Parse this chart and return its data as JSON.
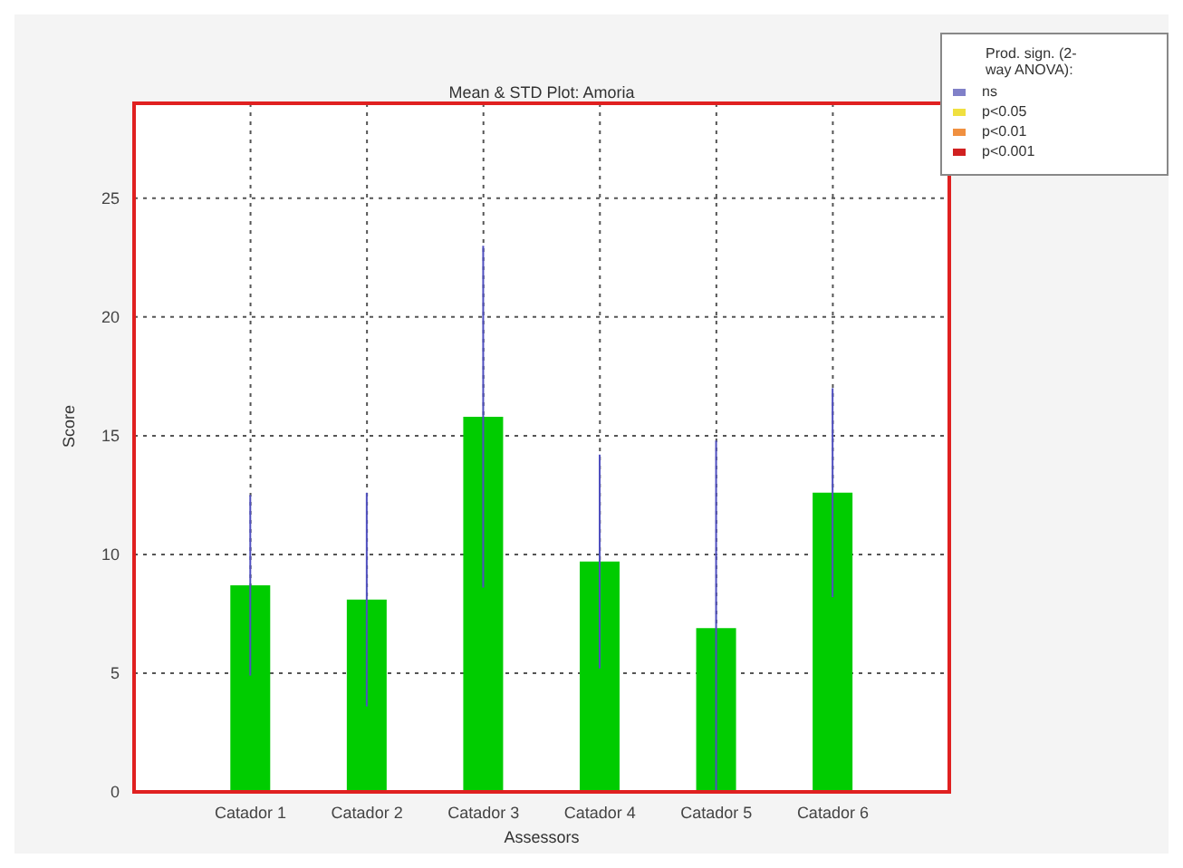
{
  "chart_data": {
    "type": "bar",
    "title": "Mean & STD Plot: Amoria",
    "xlabel": "Assessors",
    "ylabel": "Score",
    "categories": [
      "Catador 1",
      "Catador 2",
      "Catador 3",
      "Catador 4",
      "Catador 5",
      "Catador 6"
    ],
    "series": [
      {
        "color": "#00cc00",
        "values": [
          8.7,
          8.1,
          15.8,
          9.7,
          6.9,
          12.6
        ],
        "errors": [
          3.8,
          4.5,
          7.2,
          4.5,
          [
            0,
            14.8
          ],
          4.4
        ]
      },
      {
        "type": "scatter",
        "name": "ns",
        "color": "#8080c8",
        "values": [
          null,
          null,
          null,
          null,
          null,
          null
        ]
      },
      {
        "type": "scatter",
        "name": "p<0.05",
        "color": "#f0e040",
        "values": [
          null,
          null,
          null,
          null,
          null,
          null
        ]
      },
      {
        "type": "scatter",
        "name": "p<0.01",
        "color": "#f09040",
        "values": [
          null,
          null,
          null,
          null,
          null,
          null
        ]
      },
      {
        "type": "scatter",
        "name": "p<0.001",
        "color": "#d02020",
        "values": [
          null,
          null,
          null,
          null,
          null,
          null
        ]
      }
    ],
    "legend_title": "Prod. sign. (2-way ANOVA):",
    "legend": "top right",
    "ylim": [
      0,
      29
    ],
    "yticks": [
      0,
      5,
      10,
      15,
      20,
      25
    ],
    "grid": true
  }
}
